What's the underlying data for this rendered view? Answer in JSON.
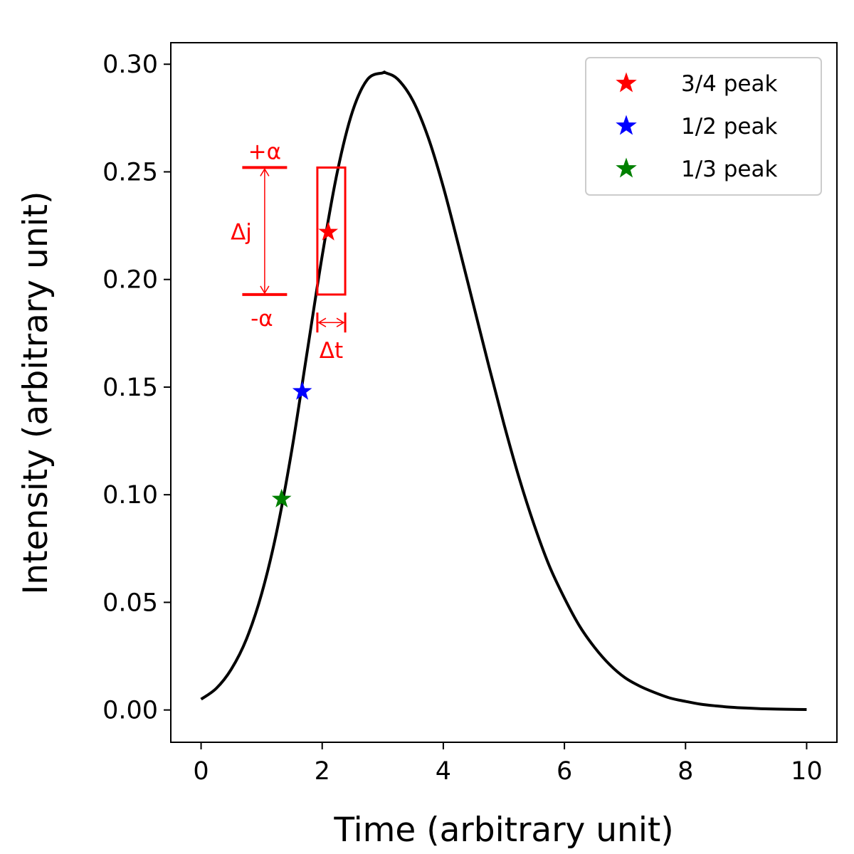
{
  "chart_data": {
    "type": "line",
    "title": "",
    "xlabel": "Time (arbitrary unit)",
    "ylabel": "Intensity (arbitrary unit)",
    "xlim": [
      -0.5,
      10.5
    ],
    "ylim": [
      -0.015,
      0.31
    ],
    "xticks": [
      0,
      2,
      4,
      6,
      8,
      10
    ],
    "xtick_labels": [
      "0",
      "2",
      "4",
      "6",
      "8",
      "10"
    ],
    "yticks": [
      0.0,
      0.05,
      0.1,
      0.15,
      0.2,
      0.25,
      0.3
    ],
    "ytick_labels": [
      "0.00",
      "0.05",
      "0.10",
      "0.15",
      "0.20",
      "0.25",
      "0.30"
    ],
    "grid": false,
    "series": [
      {
        "name": "intensity",
        "color": "#000000",
        "x": [
          0,
          0.25,
          0.5,
          0.75,
          1.0,
          1.25,
          1.5,
          1.75,
          2.0,
          2.25,
          2.5,
          2.75,
          3.0,
          3.05,
          3.25,
          3.5,
          3.75,
          4.0,
          4.25,
          4.5,
          4.75,
          5.0,
          5.25,
          5.5,
          5.75,
          6.0,
          6.25,
          6.5,
          6.75,
          7.0,
          7.25,
          7.5,
          7.75,
          8.0,
          8.25,
          8.5,
          8.75,
          9.0,
          9.25,
          9.5,
          9.75,
          10.0
        ],
        "y": [
          0.005,
          0.01,
          0.019,
          0.033,
          0.054,
          0.083,
          0.121,
          0.166,
          0.211,
          0.25,
          0.278,
          0.293,
          0.296,
          0.296,
          0.293,
          0.283,
          0.266,
          0.243,
          0.216,
          0.188,
          0.16,
          0.133,
          0.108,
          0.086,
          0.067,
          0.052,
          0.039,
          0.029,
          0.021,
          0.015,
          0.011,
          0.008,
          0.0055,
          0.004,
          0.0027,
          0.0019,
          0.0013,
          0.0009,
          0.0006,
          0.0004,
          0.0003,
          0.0002
        ]
      }
    ],
    "markers": [
      {
        "name": "3/4 peak",
        "x": 2.1,
        "y": 0.222,
        "color": "#ff0000"
      },
      {
        "name": "1/2 peak",
        "x": 1.67,
        "y": 0.148,
        "color": "#0000ff"
      },
      {
        "name": "1/3 peak",
        "x": 1.33,
        "y": 0.098,
        "color": "#008000"
      }
    ],
    "legend": {
      "placement": "top-right",
      "entries": [
        "3/4 peak",
        "1/2 peak",
        "1/3 peak"
      ]
    },
    "annotations": {
      "color": "#ff0000",
      "window_box": {
        "x0": 1.92,
        "x1": 2.38,
        "y0": 0.193,
        "y1": 0.252
      },
      "plus_alpha_label": "+α",
      "minus_alpha_label": "-α",
      "delta_j_label": "Δj",
      "delta_t_label": "Δt",
      "j_marker_x": [
        0.68,
        1.42
      ],
      "j_arrow_x": 1.05,
      "t_arrow_y": 0.18
    }
  }
}
